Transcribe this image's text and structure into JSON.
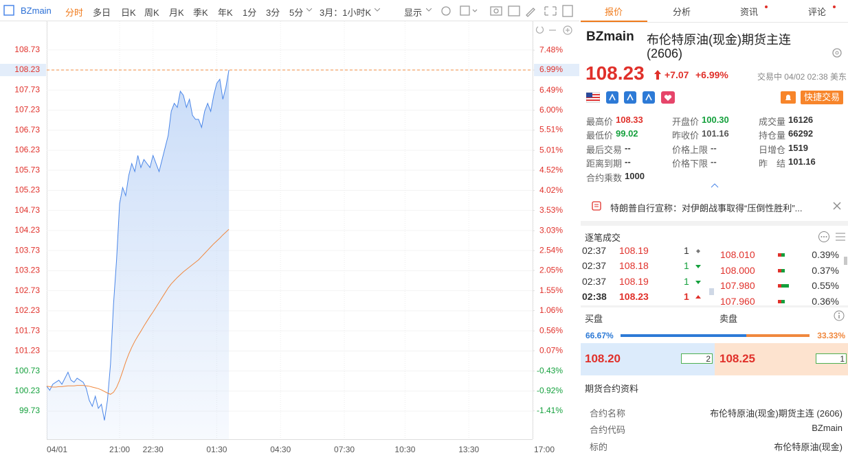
{
  "toolbar": {
    "symbol": "BZmain",
    "tabs": [
      "分时",
      "多日",
      "日K",
      "周K",
      "月K",
      "季K",
      "年K",
      "1分",
      "3分",
      "5分"
    ],
    "period": "3月：1小时K",
    "display": "显示"
  },
  "chart_data": {
    "type": "line",
    "series": [
      {
        "color": "#4a86e8",
        "values": [
          100.35,
          100.25,
          100.4,
          100.45,
          100.5,
          100.4,
          100.55,
          100.7,
          100.5,
          100.45,
          100.55,
          100.5,
          100.45,
          100.3,
          100.0,
          99.85,
          100.1,
          99.8,
          99.9,
          99.5,
          100.0,
          100.9,
          102.4,
          103.5,
          104.9,
          105.3,
          105.1,
          105.6,
          105.9,
          105.7,
          106.1,
          105.8,
          106.0,
          105.9,
          105.8,
          106.1,
          105.9,
          105.7,
          106.0,
          106.3,
          106.6,
          107.2,
          107.4,
          107.3,
          107.7,
          107.6,
          107.3,
          107.5,
          107.1,
          107.0,
          107.0,
          106.8,
          107.2,
          107.4,
          107.2,
          107.6,
          107.9,
          108.0,
          107.5,
          107.8,
          108.23
        ]
      },
      {
        "color": "#f0883e",
        "values": [
          100.35,
          100.34,
          100.33,
          100.33,
          100.34,
          100.34,
          100.35,
          100.36,
          100.36,
          100.36,
          100.37,
          100.37,
          100.37,
          100.36,
          100.35,
          100.33,
          100.31,
          100.29,
          100.26,
          100.22,
          100.18,
          100.15,
          100.2,
          100.32,
          100.5,
          100.72,
          100.95,
          101.15,
          101.32,
          101.47,
          101.6,
          101.72,
          101.85,
          101.97,
          102.09,
          102.2,
          102.32,
          102.44,
          102.56,
          102.68,
          102.8,
          102.9,
          102.98,
          103.06,
          103.13,
          103.2,
          103.26,
          103.32,
          103.38,
          103.44,
          103.5,
          103.58,
          103.66,
          103.74,
          103.82,
          103.9,
          103.97,
          104.04,
          104.12,
          104.19,
          104.26
        ]
      }
    ],
    "xlim": [
      0,
      160
    ],
    "xticks": [
      {
        "value": 0,
        "label": "04/01"
      },
      {
        "value": 24,
        "label": "21:00"
      },
      {
        "value": 35,
        "label": "22:30"
      },
      {
        "value": 56,
        "label": "01:30"
      },
      {
        "value": 77,
        "label": "04:30"
      },
      {
        "value": 98,
        "label": "07:30"
      },
      {
        "value": 118,
        "label": "10:30"
      },
      {
        "value": 139,
        "label": "13:30"
      },
      {
        "value": 160,
        "label": "17:00"
      }
    ],
    "ylim": [
      99.03,
      109.29
    ],
    "yticks": [
      99.73,
      100.23,
      100.73,
      101.23,
      101.73,
      102.23,
      102.73,
      103.23,
      103.73,
      104.23,
      104.73,
      105.23,
      105.73,
      106.23,
      106.73,
      107.23,
      107.73,
      108.23,
      108.73
    ],
    "y2lim": [
      -2.11,
      8.04
    ],
    "y2ticks": [
      {
        "value": -1.41,
        "label": "-1.41%"
      },
      {
        "value": -0.92,
        "label": "-0.92%"
      },
      {
        "value": -0.43,
        "label": "-0.43%"
      },
      {
        "value": 0.07,
        "label": "0.07%"
      },
      {
        "value": 0.56,
        "label": "0.56%"
      },
      {
        "value": 1.06,
        "label": "1.06%"
      },
      {
        "value": 1.55,
        "label": "1.55%"
      },
      {
        "value": 2.05,
        "label": "2.05%"
      },
      {
        "value": 2.54,
        "label": "2.54%"
      },
      {
        "value": 3.03,
        "label": "3.03%"
      },
      {
        "value": 3.53,
        "label": "3.53%"
      },
      {
        "value": 4.02,
        "label": "4.02%"
      },
      {
        "value": 4.52,
        "label": "4.52%"
      },
      {
        "value": 5.01,
        "label": "5.01%"
      },
      {
        "value": 5.51,
        "label": "5.51%"
      },
      {
        "value": 6.0,
        "label": "6.00%"
      },
      {
        "value": 6.49,
        "label": "6.49%"
      },
      {
        "value": 6.99,
        "label": "6.99%"
      },
      {
        "value": 7.48,
        "label": "7.48%"
      }
    ],
    "last_price": 108.23,
    "grid": true
  },
  "panel_tabs": [
    "报价",
    "分析",
    "资讯",
    "评论"
  ],
  "quote": {
    "code": "BZmain",
    "name": "布伦特原油(现金)期货主连",
    "contract": "(2606)",
    "price": "108.23",
    "change": "+7.07",
    "change_pct": "+6.99%",
    "status": "交易中 04/02 02:38 美东",
    "quick_trade": "快捷交易"
  },
  "stats": [
    {
      "label": "最高价",
      "value": "108.33",
      "color": "#e0302a"
    },
    {
      "label": "开盘价",
      "value": "100.30",
      "color": "#14a03c"
    },
    {
      "label": "成交量",
      "value": "16126",
      "color": "#333"
    },
    {
      "label": "最低价",
      "value": "99.02",
      "color": "#14a03c"
    },
    {
      "label": "昨收价",
      "value": "101.16",
      "color": "#555"
    },
    {
      "label": "持仓量",
      "value": "66292",
      "color": "#333"
    },
    {
      "label": "最后交易",
      "value": "--",
      "color": "#333"
    },
    {
      "label": "价格上限",
      "value": "--",
      "color": "#555"
    },
    {
      "label": "日增仓",
      "value": "1519",
      "color": "#333"
    },
    {
      "label": "距离到期",
      "value": "--",
      "color": "#333"
    },
    {
      "label": "价格下限",
      "value": "--",
      "color": "#555"
    },
    {
      "label": "昨　结",
      "value": "101.16",
      "color": "#333"
    },
    {
      "label": "合约乘数",
      "value": "1000",
      "color": "#333"
    }
  ],
  "news": "特朗普自行宣称：对伊朗战事取得“压倒性胜利”...",
  "trades": {
    "title": "逐笔成交",
    "rows": [
      {
        "time": "02:37",
        "price": "108.19",
        "volume": "1",
        "direction": "flat"
      },
      {
        "time": "02:37",
        "price": "108.18",
        "volume": "1",
        "direction": "down"
      },
      {
        "time": "02:37",
        "price": "108.19",
        "volume": "1",
        "direction": "down"
      },
      {
        "time": "02:38",
        "price": "108.23",
        "volume": "1",
        "direction": "up"
      }
    ]
  },
  "depth": [
    {
      "price": "108.010",
      "pct": "0.39%"
    },
    {
      "price": "108.000",
      "pct": "0.37%"
    },
    {
      "price": "107.980",
      "pct": "0.55%"
    },
    {
      "price": "107.960",
      "pct": "0.36%"
    }
  ],
  "book": {
    "bid_label": "买盘",
    "ask_label": "卖盘",
    "bid_ratio": {
      "value": 66.67,
      "label": "66.67%"
    },
    "ask_ratio": {
      "value": 33.33,
      "label": "33.33%"
    },
    "bid_price": "108.20",
    "bid_volume": "2",
    "ask_price": "108.25",
    "ask_volume": "1"
  },
  "contract_info": {
    "title": "期货合约资料",
    "rows": [
      {
        "label": "合约名称",
        "value": "布伦特原油(现金)期货主连 (2606)"
      },
      {
        "label": "合约代码",
        "value": "BZmain"
      },
      {
        "label": "标的",
        "value": "布伦特原油(现金)"
      }
    ]
  }
}
